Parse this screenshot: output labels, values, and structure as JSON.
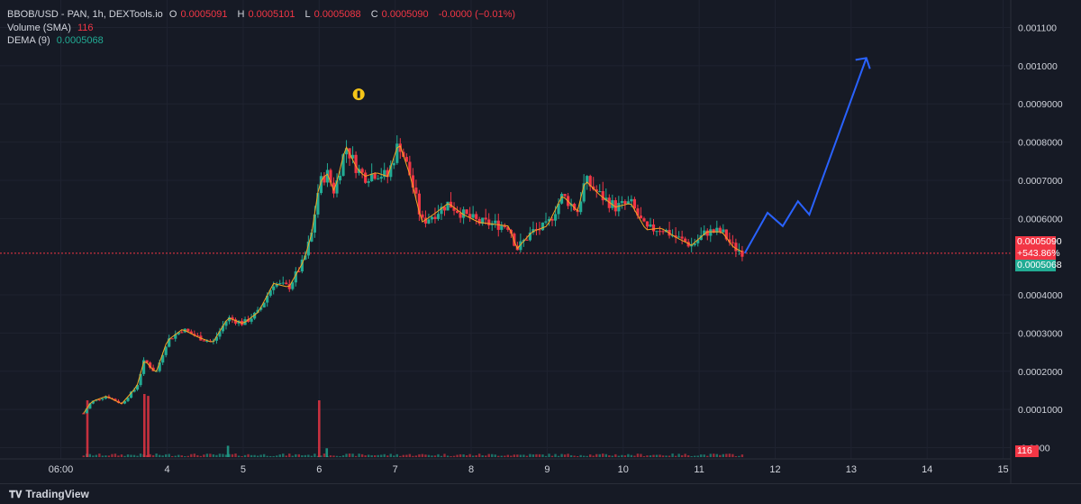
{
  "legend": {
    "symbol": "BBOB/USD - PAN, 1h, DEXTools.io",
    "open_label": "O",
    "open": "0.0005091",
    "high_label": "H",
    "high": "0.0005101",
    "low_label": "L",
    "low": "0.0005088",
    "close_label": "C",
    "close": "0.0005090",
    "change": "-0.0000 (−0.01%)",
    "volume_label": "Volume (SMA)",
    "volume_value": "116",
    "dema_label": "DEMA (9)",
    "dema_value": "0.0005068"
  },
  "price_tags": {
    "last_price": "0.0005090",
    "change_pct": "+543.86%",
    "dema": "0.0005068",
    "volume": "116"
  },
  "footer": {
    "brand": "TradingView",
    "logo_icon": "tradingview-logo-icon"
  },
  "colors": {
    "up": "#22ab94",
    "down": "#f23645",
    "dema": "#f5a623",
    "projection": "#2962ff",
    "background": "#161a25"
  },
  "chart_data": {
    "type": "candlestick",
    "y_axis": {
      "ticks": [
        "0.001100",
        "0.001000",
        "0.0009000",
        "0.0008000",
        "0.0007000",
        "0.0006000",
        "0.0004000",
        "0.0003000",
        "0.0002000",
        "0.0001000",
        "-0.0000"
      ],
      "tick_values": [
        0.0011,
        0.001,
        0.0009,
        0.0008,
        0.0007,
        0.0006,
        0.0004,
        0.0003,
        0.0002,
        0.0001,
        0.0
      ],
      "range": [
        -2e-05,
        0.00112
      ]
    },
    "x_axis": {
      "ticks": [
        "06:00",
        "4",
        "5",
        "6",
        "7",
        "8",
        "9",
        "10",
        "11",
        "12",
        "13",
        "14",
        "15"
      ],
      "tick_values": [
        2.6,
        4,
        5,
        6,
        7,
        8,
        9,
        10,
        11,
        12,
        13,
        14,
        15
      ],
      "range": [
        1.8,
        15.1
      ]
    },
    "last_price": 0.000509,
    "price_path": [
      [
        2.9,
        9e-05
      ],
      [
        3.0,
        0.00012
      ],
      [
        3.2,
        0.000135
      ],
      [
        3.4,
        0.000115
      ],
      [
        3.6,
        0.00016
      ],
      [
        3.7,
        0.00023
      ],
      [
        3.85,
        0.000195
      ],
      [
        4.0,
        0.00028
      ],
      [
        4.2,
        0.00031
      ],
      [
        4.4,
        0.00029
      ],
      [
        4.6,
        0.000275
      ],
      [
        4.8,
        0.00034
      ],
      [
        5.0,
        0.000325
      ],
      [
        5.2,
        0.000355
      ],
      [
        5.4,
        0.00043
      ],
      [
        5.6,
        0.00042
      ],
      [
        5.8,
        0.00049
      ],
      [
        5.9,
        0.00056
      ],
      [
        6.0,
        0.00069
      ],
      [
        6.1,
        0.00072
      ],
      [
        6.2,
        0.00067
      ],
      [
        6.35,
        0.00079
      ],
      [
        6.5,
        0.00073
      ],
      [
        6.6,
        0.00071
      ],
      [
        6.75,
        0.00072
      ],
      [
        6.9,
        0.00071
      ],
      [
        7.05,
        0.0008
      ],
      [
        7.2,
        0.00071
      ],
      [
        7.35,
        0.00059
      ],
      [
        7.5,
        0.00061
      ],
      [
        7.7,
        0.00064
      ],
      [
        7.9,
        0.00061
      ],
      [
        8.1,
        0.00059
      ],
      [
        8.3,
        0.000585
      ],
      [
        8.5,
        0.00058
      ],
      [
        8.6,
        0.00052
      ],
      [
        8.8,
        0.000565
      ],
      [
        9.0,
        0.00058
      ],
      [
        9.2,
        0.00066
      ],
      [
        9.4,
        0.00062
      ],
      [
        9.5,
        0.0007
      ],
      [
        9.7,
        0.00066
      ],
      [
        9.9,
        0.00063
      ],
      [
        10.1,
        0.00064
      ],
      [
        10.3,
        0.00057
      ],
      [
        10.5,
        0.000575
      ],
      [
        10.7,
        0.00055
      ],
      [
        10.9,
        0.00053
      ],
      [
        11.1,
        0.000565
      ],
      [
        11.3,
        0.000565
      ],
      [
        11.45,
        0.000525
      ],
      [
        11.6,
        0.000509
      ]
    ],
    "volume_spikes": [
      [
        2.95,
        0.9
      ],
      [
        3.7,
        1.0
      ],
      [
        3.75,
        0.97
      ],
      [
        6.0,
        0.9
      ],
      [
        4.8,
        0.18
      ],
      [
        6.1,
        0.14
      ]
    ],
    "projection_path": [
      [
        11.6,
        0.000509
      ],
      [
        11.9,
        0.000615
      ],
      [
        12.1,
        0.00058
      ],
      [
        12.3,
        0.000645
      ],
      [
        12.45,
        0.00061
      ],
      [
        13.2,
        0.00102
      ]
    ],
    "grid": true
  }
}
